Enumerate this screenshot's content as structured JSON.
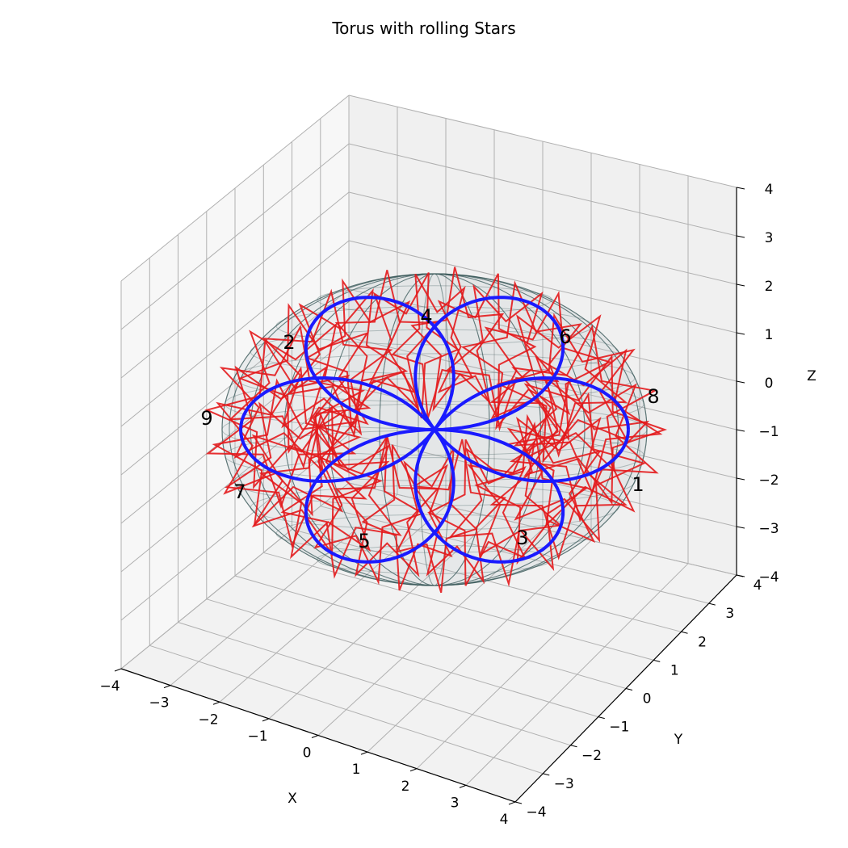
{
  "chart_data": {
    "type": "3d-line",
    "title": "Torus with rolling Stars",
    "xlabel": "X",
    "ylabel": "Y",
    "zlabel": "Z",
    "xlim": [
      -4,
      4
    ],
    "ylim": [
      -4,
      4
    ],
    "zlim": [
      -4,
      4
    ],
    "x_ticks": [
      "−4",
      "−3",
      "−2",
      "−1",
      "0",
      "1",
      "2",
      "3",
      "4"
    ],
    "y_ticks": [
      "−4",
      "−3",
      "−2",
      "−1",
      "0",
      "1",
      "2",
      "3",
      "4"
    ],
    "z_ticks": [
      "−4",
      "−3",
      "−2",
      "−1",
      "0",
      "1",
      "2",
      "3",
      "4"
    ],
    "grid": true,
    "torus": {
      "major_radius": 2.5,
      "minor_radius": 1.5,
      "color": "#2f4f4f"
    },
    "stars": {
      "count": 40,
      "points": 5,
      "color": "#e31a1c"
    },
    "knot": {
      "type": "torus-knot",
      "p": 2,
      "q": 3,
      "color": "#1a1aff"
    },
    "annotations": [
      "1",
      "2",
      "3",
      "4",
      "5",
      "6",
      "7",
      "8",
      "9"
    ]
  }
}
